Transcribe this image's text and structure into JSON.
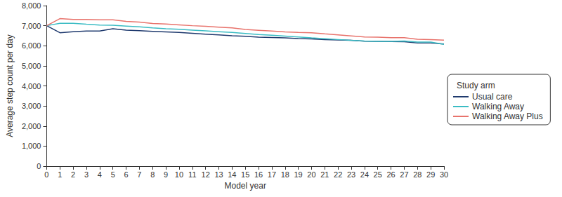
{
  "chart_data": {
    "type": "line",
    "x_label": "Model year",
    "y_label": "Average step count per day",
    "legend_title": "Study arm",
    "legend": "right",
    "grid": false,
    "x": [
      0,
      1,
      2,
      3,
      4,
      5,
      6,
      7,
      8,
      9,
      10,
      11,
      12,
      13,
      14,
      15,
      16,
      17,
      18,
      19,
      20,
      21,
      22,
      23,
      24,
      25,
      26,
      27,
      28,
      29,
      30
    ],
    "xlim": [
      0,
      30
    ],
    "xticks": [
      0,
      1,
      2,
      3,
      4,
      5,
      6,
      7,
      8,
      9,
      10,
      11,
      12,
      13,
      14,
      15,
      16,
      17,
      18,
      19,
      20,
      21,
      22,
      23,
      24,
      25,
      26,
      27,
      28,
      29,
      30
    ],
    "ylim": [
      0,
      8000
    ],
    "yticks": [
      0,
      1000,
      2000,
      3000,
      4000,
      5000,
      6000,
      7000,
      8000
    ],
    "series": [
      {
        "name": "Usual care",
        "color": "#1f3a6e",
        "values": [
          7000,
          6650,
          6700,
          6730,
          6730,
          6850,
          6780,
          6750,
          6720,
          6690,
          6660,
          6620,
          6580,
          6540,
          6500,
          6470,
          6430,
          6410,
          6390,
          6360,
          6340,
          6310,
          6290,
          6270,
          6230,
          6220,
          6210,
          6200,
          6140,
          6140,
          6090
        ]
      },
      {
        "name": "Walking Away",
        "color": "#3bbcc4",
        "values": [
          7000,
          7120,
          7120,
          7070,
          7030,
          7020,
          6980,
          6940,
          6890,
          6850,
          6820,
          6780,
          6740,
          6700,
          6660,
          6610,
          6560,
          6520,
          6480,
          6440,
          6390,
          6350,
          6310,
          6270,
          6240,
          6220,
          6220,
          6240,
          6180,
          6180,
          6070
        ]
      },
      {
        "name": "Walking Away Plus",
        "color": "#e8736c",
        "values": [
          7000,
          7350,
          7310,
          7310,
          7290,
          7290,
          7210,
          7180,
          7110,
          7080,
          7040,
          7000,
          6970,
          6930,
          6890,
          6810,
          6770,
          6730,
          6690,
          6660,
          6650,
          6590,
          6540,
          6490,
          6440,
          6430,
          6400,
          6400,
          6320,
          6310,
          6280
        ]
      }
    ]
  }
}
